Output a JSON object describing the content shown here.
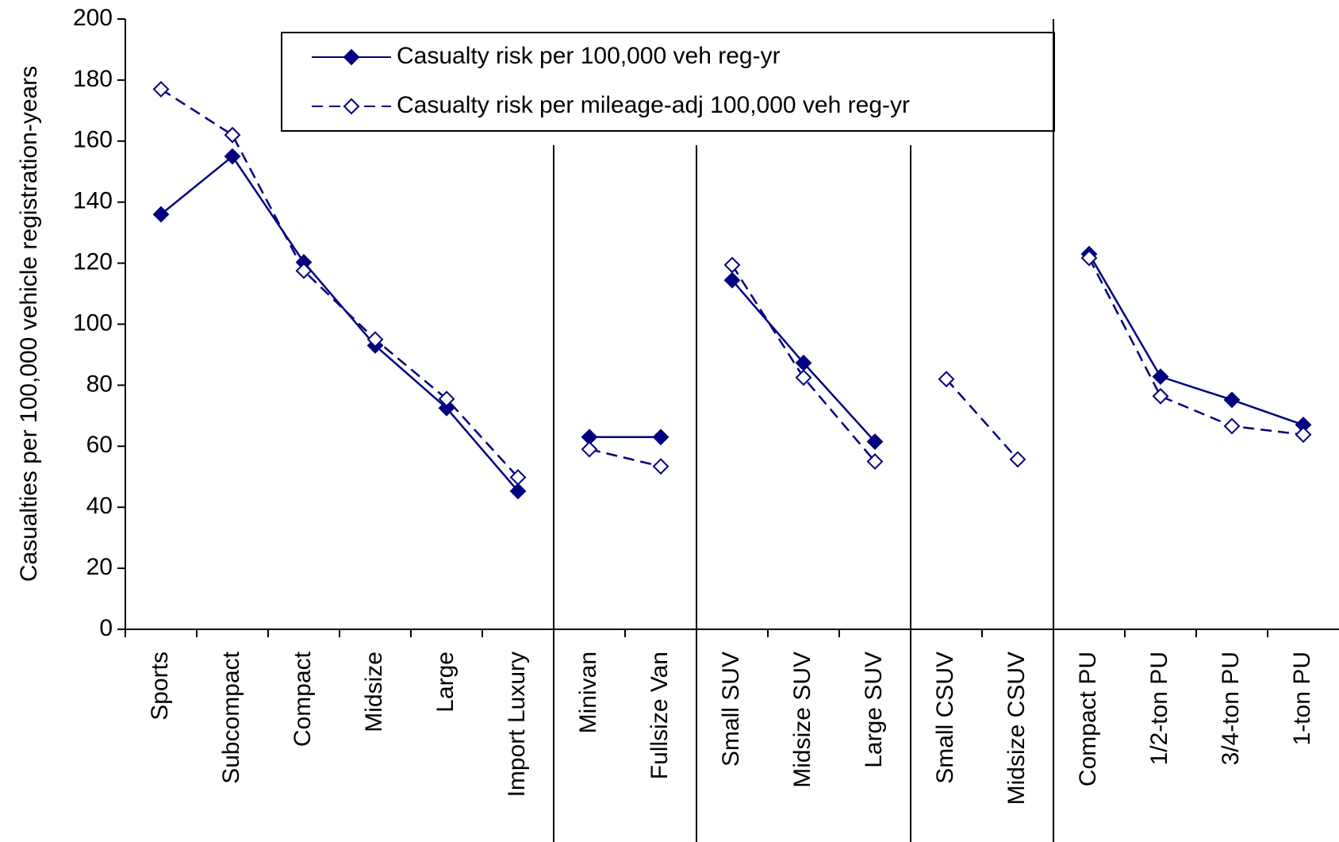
{
  "chart_data": {
    "type": "line",
    "ylabel": "Casualties per 100,000 vehicle registration-years",
    "ylim": [
      0,
      200
    ],
    "yticks": [
      0,
      20,
      40,
      60,
      80,
      100,
      120,
      140,
      160,
      180,
      200
    ],
    "series": [
      {
        "name": "Casualty risk per 100,000 veh reg-yr",
        "color": "#000080",
        "dashed": false,
        "marker": "filled-diamond"
      },
      {
        "name": "Casualty risk per mileage-adj 100,000 veh reg-yr",
        "color": "#000080",
        "dashed": true,
        "marker": "open-diamond"
      }
    ],
    "groups": [
      {
        "categories": [
          "Sports",
          "Subcompact",
          "Compact",
          "Midsize",
          "Large",
          "Import Luxury"
        ],
        "series": [
          {
            "values": [
              136,
              155,
              120.3,
              93,
              72.5,
              45.3
            ]
          },
          {
            "values": [
              177,
              162,
              117.5,
              95,
              75.5,
              49.8
            ]
          }
        ]
      },
      {
        "categories": [
          "Minivan",
          "Fullsize Van"
        ],
        "series": [
          {
            "values": [
              63,
              63
            ]
          },
          {
            "values": [
              59,
              53.4
            ]
          }
        ]
      },
      {
        "categories": [
          "Small SUV",
          "Midsize SUV",
          "Large SUV"
        ],
        "series": [
          {
            "values": [
              114.4,
              87.3,
              61.5
            ]
          },
          {
            "values": [
              119.4,
              82.5,
              55
            ]
          }
        ]
      },
      {
        "categories": [
          "Small CSUV",
          "Midsize CSUV"
        ],
        "series": [
          {
            "values": [
              null,
              null
            ]
          },
          {
            "values": [
              82,
              55.7
            ]
          }
        ]
      },
      {
        "categories": [
          "Compact PU",
          "1/2-ton PU",
          "3/4-ton PU",
          "1-ton PU"
        ],
        "series": [
          {
            "values": [
              123,
              82.8,
              75.2,
              67
            ]
          },
          {
            "values": [
              121.7,
              76.4,
              66.6,
              63.8
            ]
          }
        ]
      }
    ]
  }
}
